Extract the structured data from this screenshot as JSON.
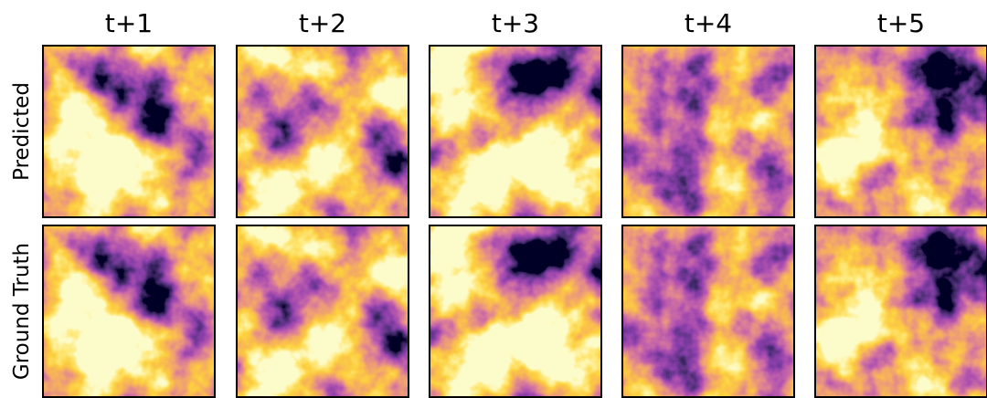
{
  "columns": [
    "t+1",
    "t+2",
    "t+3",
    "t+4",
    "t+5"
  ],
  "rows": [
    "Predicted",
    "Ground Truth"
  ]
}
